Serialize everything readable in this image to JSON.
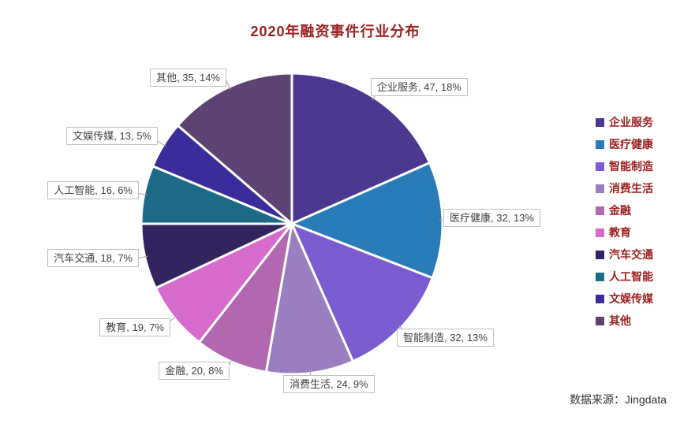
{
  "title": "2020年融资事件行业分布",
  "source": "数据来源：Jingdata",
  "styles": {
    "title_color": "#9c2020",
    "legend_text_color": "#9c2020",
    "label_text_color": "#404040",
    "label_border_color": "#bfbfbf",
    "leader_line_color": "#a6a6a6",
    "background": "#ffffff",
    "slice_gap_color": "#ffffff"
  },
  "chart_data": {
    "type": "pie",
    "title": "2020年融资事件行业分布",
    "legend_position": "right",
    "start_angle_deg": 0,
    "direction": "clockwise",
    "total": 256,
    "series": [
      {
        "name": "企业服务",
        "value": 47,
        "pct": "18%",
        "color": "#4c3791"
      },
      {
        "name": "医疗健康",
        "value": 32,
        "pct": "13%",
        "color": "#2a7cb8"
      },
      {
        "name": "智能制造",
        "value": 32,
        "pct": "13%",
        "color": "#7a5cd0"
      },
      {
        "name": "消费生活",
        "value": 24,
        "pct": "9%",
        "color": "#9a7ec0"
      },
      {
        "name": "金融",
        "value": 20,
        "pct": "8%",
        "color": "#b168b1"
      },
      {
        "name": "教育",
        "value": 19,
        "pct": "7%",
        "color": "#d76bcc"
      },
      {
        "name": "汽车交通",
        "value": 18,
        "pct": "7%",
        "color": "#332460"
      },
      {
        "name": "人工智能",
        "value": 16,
        "pct": "6%",
        "color": "#1d6a87"
      },
      {
        "name": "文娱传媒",
        "value": 13,
        "pct": "5%",
        "color": "#3a2d9b"
      },
      {
        "name": "其他",
        "value": 35,
        "pct": "14%",
        "color": "#5c4374"
      }
    ],
    "labels": [
      "企业服务, 47, 18%",
      "医疗健康, 32, 13%",
      "智能制造, 32, 13%",
      "消费生活, 24, 9%",
      "金融, 20, 8%",
      "教育, 19, 7%",
      "汽车交通, 18, 7%",
      "人工智能, 16, 6%",
      "文娱传媒, 13, 5%",
      "其他, 35, 14%"
    ]
  }
}
